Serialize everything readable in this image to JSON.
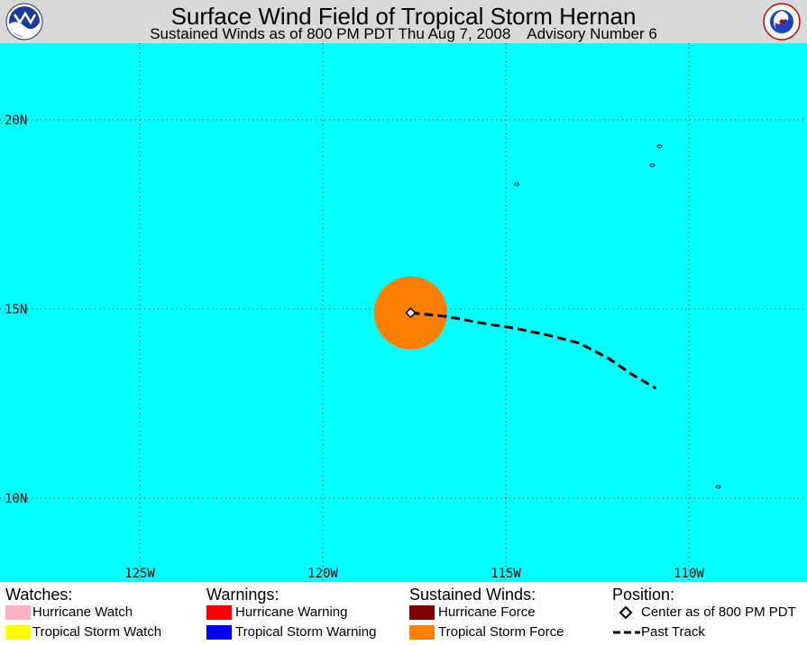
{
  "header": {
    "title": "Surface Wind Field of Tropical Storm Hernan",
    "subtitle": "Sustained Winds as of 800 PM PDT Thu Aug 7, 2008    Advisory Number 6",
    "left_logo_icon": "noaa-logo-icon",
    "right_logo_icon": "national-weather-service-logo-icon"
  },
  "map": {
    "ocean_color": "#00ffff",
    "latitude_labels": [
      "20N",
      "15N",
      "10N"
    ],
    "longitude_labels": [
      "125W",
      "120W",
      "115W",
      "110W"
    ],
    "storm": {
      "center_lon": -117.6,
      "center_lat": 14.9,
      "tropical_storm_force_radius_deg": 1.0,
      "tropical_storm_force_color": "#ff8000"
    },
    "past_track": [
      [
        -117.6,
        14.9
      ],
      [
        -116.6,
        14.8
      ],
      [
        -115.5,
        14.6
      ],
      [
        -114.8,
        14.5
      ],
      [
        -113.8,
        14.3
      ],
      [
        -113.0,
        14.1
      ],
      [
        -112.2,
        13.7
      ],
      [
        -111.6,
        13.3
      ],
      [
        -110.9,
        12.9
      ]
    ],
    "islands": [
      {
        "name": "",
        "lon": -110.8,
        "lat": 19.3
      },
      {
        "name": "",
        "lon": -111.0,
        "lat": 18.8
      },
      {
        "name": "",
        "lon": -114.7,
        "lat": 18.3
      },
      {
        "name": "",
        "lon": -109.2,
        "lat": 10.3
      }
    ]
  },
  "legend": {
    "watches": {
      "heading": "Watches:",
      "items": [
        {
          "label": "Hurricane Watch",
          "color": "#ffb0c0"
        },
        {
          "label": "Tropical Storm Watch",
          "color": "#ffff00"
        }
      ]
    },
    "warnings": {
      "heading": "Warnings:",
      "items": [
        {
          "label": "Hurricane Warning",
          "color": "#ff0000"
        },
        {
          "label": "Tropical Storm Warning",
          "color": "#0000ff"
        }
      ]
    },
    "sustained_winds": {
      "heading": "Sustained Winds:",
      "items": [
        {
          "label": "Hurricane Force",
          "color": "#800000"
        },
        {
          "label": "Tropical Storm Force",
          "color": "#ff8000"
        }
      ]
    },
    "position": {
      "heading": "Position:",
      "items": [
        {
          "label": "Center as of 800 PM PDT",
          "icon": "diamond-icon"
        },
        {
          "label": "Past Track",
          "icon": "dashed-line-icon"
        }
      ]
    }
  }
}
